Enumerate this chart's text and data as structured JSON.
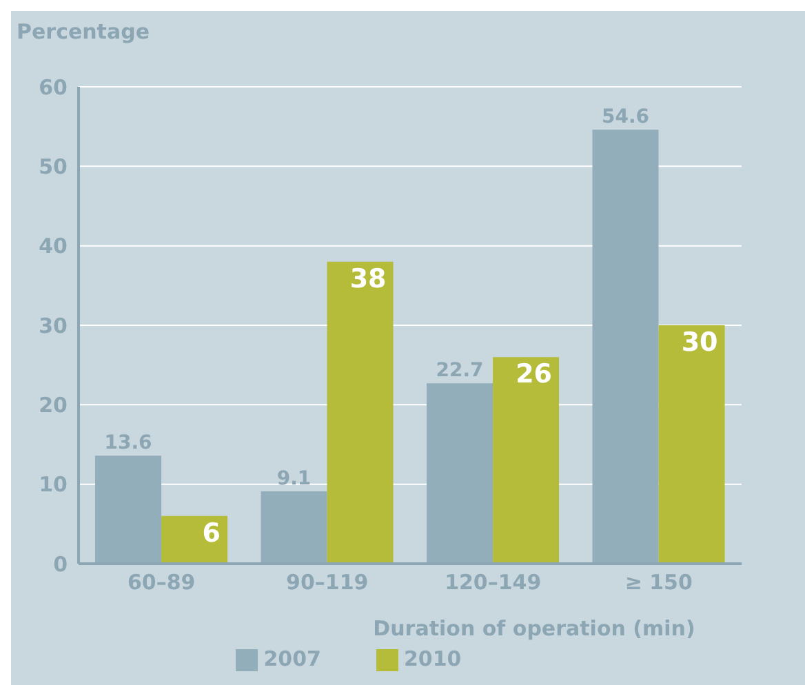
{
  "chart_data": {
    "type": "bar",
    "ylabel": "Percentage",
    "xlabel": "Duration of operation (min)",
    "categories": [
      "60–89",
      "90–119",
      "120–149",
      "≥ 150"
    ],
    "series": [
      {
        "name": "2007",
        "color": "#93aebb",
        "values": [
          13.6,
          9.1,
          22.7,
          54.6
        ]
      },
      {
        "name": "2010",
        "color": "#b4bc3a",
        "values": [
          6,
          38,
          26,
          30
        ]
      }
    ],
    "ylim": [
      0,
      60
    ],
    "yticks": [
      0,
      10,
      20,
      30,
      40,
      50,
      60
    ],
    "grid": "y",
    "legend": "bottom",
    "data_labels": true
  }
}
